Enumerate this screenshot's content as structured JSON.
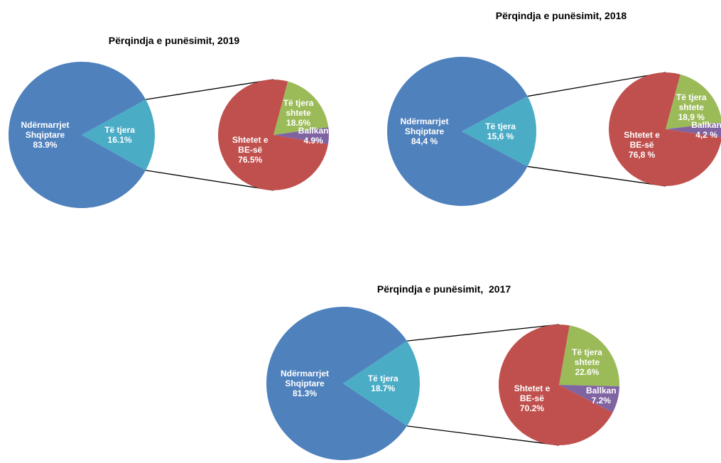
{
  "chart_data": [
    {
      "type": "pie",
      "title": "Përqindja e punësimit, 2019",
      "categories": [
        "Ndërmarrjet Shqiptare",
        "Të tjera"
      ],
      "values": [
        83.9,
        16.1
      ],
      "value_labels": [
        "83.9%",
        "16.1%"
      ],
      "colors": [
        "#4f81bd",
        "#4bacc6"
      ],
      "secondary": {
        "categories": [
          "Shtetet e BE-së",
          "Të tjera shtete",
          "Ballkan"
        ],
        "values": [
          76.5,
          18.6,
          4.9
        ],
        "value_labels": [
          "76.5%",
          "18.6%",
          "4.9%"
        ],
        "colors": [
          "#c0504d",
          "#9bbb59",
          "#8064a2"
        ]
      }
    },
    {
      "type": "pie",
      "title": "Përqindja e punësimit, 2018",
      "categories": [
        "Ndërmarrjet Shqiptare",
        "Të tjera"
      ],
      "values": [
        84.4,
        15.6
      ],
      "value_labels": [
        "84,4 %",
        "15,6 %"
      ],
      "colors": [
        "#4f81bd",
        "#4bacc6"
      ],
      "secondary": {
        "categories": [
          "Shtetet e BE-së",
          "Të tjera shtete",
          "Ballkan"
        ],
        "values": [
          76.8,
          18.9,
          4.2
        ],
        "value_labels": [
          "76,8 %",
          "18,9 %",
          "4,2 %"
        ],
        "colors": [
          "#c0504d",
          "#9bbb59",
          "#8064a2"
        ]
      }
    },
    {
      "type": "pie",
      "title": "Përqindja e punësimit,  2017",
      "categories": [
        "Ndërmarrjet Shqiptare",
        "Të tjera"
      ],
      "values": [
        81.3,
        18.7
      ],
      "value_labels": [
        "81.3%",
        "18.7%"
      ],
      "colors": [
        "#4f81bd",
        "#4bacc6"
      ],
      "secondary": {
        "categories": [
          "Shtetet e BE-së",
          "Të tjera shtete",
          "Ballkan"
        ],
        "values": [
          70.2,
          22.6,
          7.2
        ],
        "value_labels": [
          "70.2%",
          "22.6%",
          "7.2%"
        ],
        "colors": [
          "#c0504d",
          "#9bbb59",
          "#8064a2"
        ]
      }
    }
  ]
}
